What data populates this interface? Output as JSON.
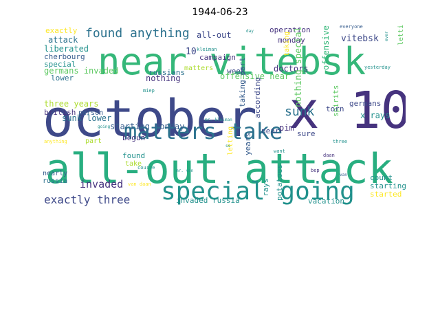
{
  "title": "1944-06-23",
  "palette": {
    "dark_purple": "#46337e",
    "indigo": "#3e4989",
    "blue": "#365c8d",
    "teal_blue": "#2c728e",
    "teal": "#21918c",
    "green_teal": "#28ae80",
    "green": "#5ec962",
    "light_green": "#addc30",
    "yellow": "#fde725"
  },
  "words": [
    {
      "id": "october",
      "text": "october",
      "color": "#3e4989"
    },
    {
      "id": "near-vitebsk",
      "text": "near vitebsk",
      "color": "#35b779"
    },
    {
      "id": "all-out-attack",
      "text": "all-out attack",
      "color": "#28ae80"
    },
    {
      "id": "x10",
      "text": "x 10",
      "color": "#46337e"
    },
    {
      "id": "matters-take",
      "text": "matters take",
      "color": "#2c728e"
    },
    {
      "id": "special-going",
      "text": "special going",
      "color": "#21918c"
    },
    {
      "id": "found-anything",
      "text": "found anything",
      "color": "#2c728e"
    },
    {
      "id": "exactly-three",
      "text": "exactly three",
      "color": "#3e4989"
    },
    {
      "id": "sunk",
      "text": "sunk",
      "color": "#2c728e"
    },
    {
      "id": "invaded",
      "text": "invaded",
      "color": "#46337e"
    },
    {
      "id": "all-out",
      "text": "all-out",
      "color": "#3e4989"
    },
    {
      "id": "operation",
      "text": "operation",
      "color": "#46337e"
    },
    {
      "id": "monday",
      "text": "monday",
      "color": "#46337e"
    },
    {
      "id": "vitebsk",
      "text": "vitebsk",
      "color": "#3e4989"
    },
    {
      "id": "exactly",
      "text": "exactly",
      "color": "#fde725"
    },
    {
      "id": "attack",
      "text": "attack",
      "color": "#2c728e"
    },
    {
      "id": "liberated",
      "text": "liberated",
      "color": "#21918c"
    },
    {
      "id": "cherbourg",
      "text": "cherbourg",
      "color": "#365c8d"
    },
    {
      "id": "special",
      "text": "special",
      "color": "#21918c"
    },
    {
      "id": "germans-invaded",
      "text": "germans invaded",
      "color": "#5ec962"
    },
    {
      "id": "lower",
      "text": "lower",
      "color": "#2c728e"
    },
    {
      "id": "russians",
      "text": "russians",
      "color": "#2c728e"
    },
    {
      "id": "matters",
      "text": "matters",
      "color": "#addc30"
    },
    {
      "id": "nothing",
      "text": "nothing",
      "color": "#46337e"
    },
    {
      "id": "campaign",
      "text": "campaign",
      "color": "#46337e"
    },
    {
      "id": "ten",
      "text": "10",
      "color": "#3e4989"
    },
    {
      "id": "week",
      "text": "week",
      "color": "#3e4989"
    },
    {
      "id": "doctors",
      "text": "doctors",
      "color": "#46337e"
    },
    {
      "id": "offensive-near",
      "text": "offensive near",
      "color": "#5ec962"
    },
    {
      "id": "offensive",
      "text": "offensive",
      "color": "#35b779"
    },
    {
      "id": "according",
      "text": "according",
      "color": "#3e4989"
    },
    {
      "id": "nothing-special",
      "text": "nothing special",
      "color": "#5ec962"
    },
    {
      "id": "spirits",
      "text": "spirits",
      "color": "#5ec962"
    },
    {
      "id": "three-years",
      "text": "three years",
      "color": "#addc30"
    },
    {
      "id": "british",
      "text": "british",
      "color": "#46337e"
    },
    {
      "id": "person",
      "text": "person",
      "color": "#365c8d"
    },
    {
      "id": "sunk-lower",
      "text": "sunk lower",
      "color": "#2c728e"
    },
    {
      "id": "starting-monday",
      "text": "starting monday",
      "color": "#365c8d"
    },
    {
      "id": "torn",
      "text": "torn",
      "color": "#3e4989"
    },
    {
      "id": "germans",
      "text": "germans",
      "color": "#3e4989"
    },
    {
      "id": "x-rays",
      "text": "x rays",
      "color": "#21918c"
    },
    {
      "id": "letting-matters",
      "text": "letting matters",
      "color": "#5ec962"
    },
    {
      "id": "taking-part",
      "text": "taking part",
      "color": "#365c8d"
    },
    {
      "id": "near",
      "text": "near",
      "color": "#3e4989"
    },
    {
      "id": "pim",
      "text": "pim",
      "color": "#46337e"
    },
    {
      "id": "sure",
      "text": "sure",
      "color": "#3e4989"
    },
    {
      "id": "begun",
      "text": "begun",
      "color": "#46337e"
    },
    {
      "id": "part",
      "text": "part",
      "color": "#addc30"
    },
    {
      "id": "found",
      "text": "found",
      "color": "#21918c"
    },
    {
      "id": "take",
      "text": "take",
      "color": "#addc30"
    },
    {
      "id": "nearly",
      "text": "nearly",
      "color": "#365c8d"
    },
    {
      "id": "russia",
      "text": "russia",
      "color": "#2c728e"
    },
    {
      "id": "invaded-russia",
      "text": "invaded russia",
      "color": "#21918c"
    },
    {
      "id": "rays",
      "text": "rays",
      "color": "#21918c"
    },
    {
      "id": "potatoes",
      "text": "potatoes",
      "color": "#21918c"
    },
    {
      "id": "count",
      "text": "count",
      "color": "#21918c"
    },
    {
      "id": "starting",
      "text": "starting",
      "color": "#21918c"
    },
    {
      "id": "started",
      "text": "started",
      "color": "#fde725"
    },
    {
      "id": "vacation",
      "text": "vacation",
      "color": "#21918c"
    },
    {
      "id": "years",
      "text": "years",
      "color": "#365c8d"
    },
    {
      "id": "letting",
      "text": "letting",
      "color": "#fde725"
    },
    {
      "id": "kleiman",
      "text": "kleiman",
      "color": "#21918c"
    },
    {
      "id": "mr-kleiman",
      "text": "mr. kleiman",
      "color": "#21918c"
    },
    {
      "id": "miep",
      "text": "miep",
      "color": "#21918c"
    },
    {
      "id": "daan",
      "text": "daan",
      "color": "#46337e"
    },
    {
      "id": "bep",
      "text": "bep",
      "color": "#46337e"
    },
    {
      "id": "van-daan",
      "text": "van daan",
      "color": "#fde725"
    },
    {
      "id": "van",
      "text": "van",
      "color": "#365c8d"
    },
    {
      "id": "want",
      "text": "want",
      "color": "#21918c"
    },
    {
      "id": "course",
      "text": "course",
      "color": "#21918c"
    },
    {
      "id": "mr-van",
      "text": "mr. van",
      "color": "#21918c"
    },
    {
      "id": "going",
      "text": "going",
      "color": "#21918c"
    },
    {
      "id": "anything",
      "text": "anything",
      "color": "#fde725"
    },
    {
      "id": "three",
      "text": "three",
      "color": "#21918c"
    },
    {
      "id": "everyone",
      "text": "everyone",
      "color": "#365c8d"
    },
    {
      "id": "day",
      "text": "day",
      "color": "#21918c"
    },
    {
      "id": "yesterday",
      "text": "yesterday",
      "color": "#21918c"
    },
    {
      "id": "ever",
      "text": "ever",
      "color": "#21918c"
    },
    {
      "id": "taking",
      "text": "taking",
      "color": "#fde725"
    },
    {
      "id": "ss",
      "text": "ss",
      "color": "#21918c"
    }
  ]
}
